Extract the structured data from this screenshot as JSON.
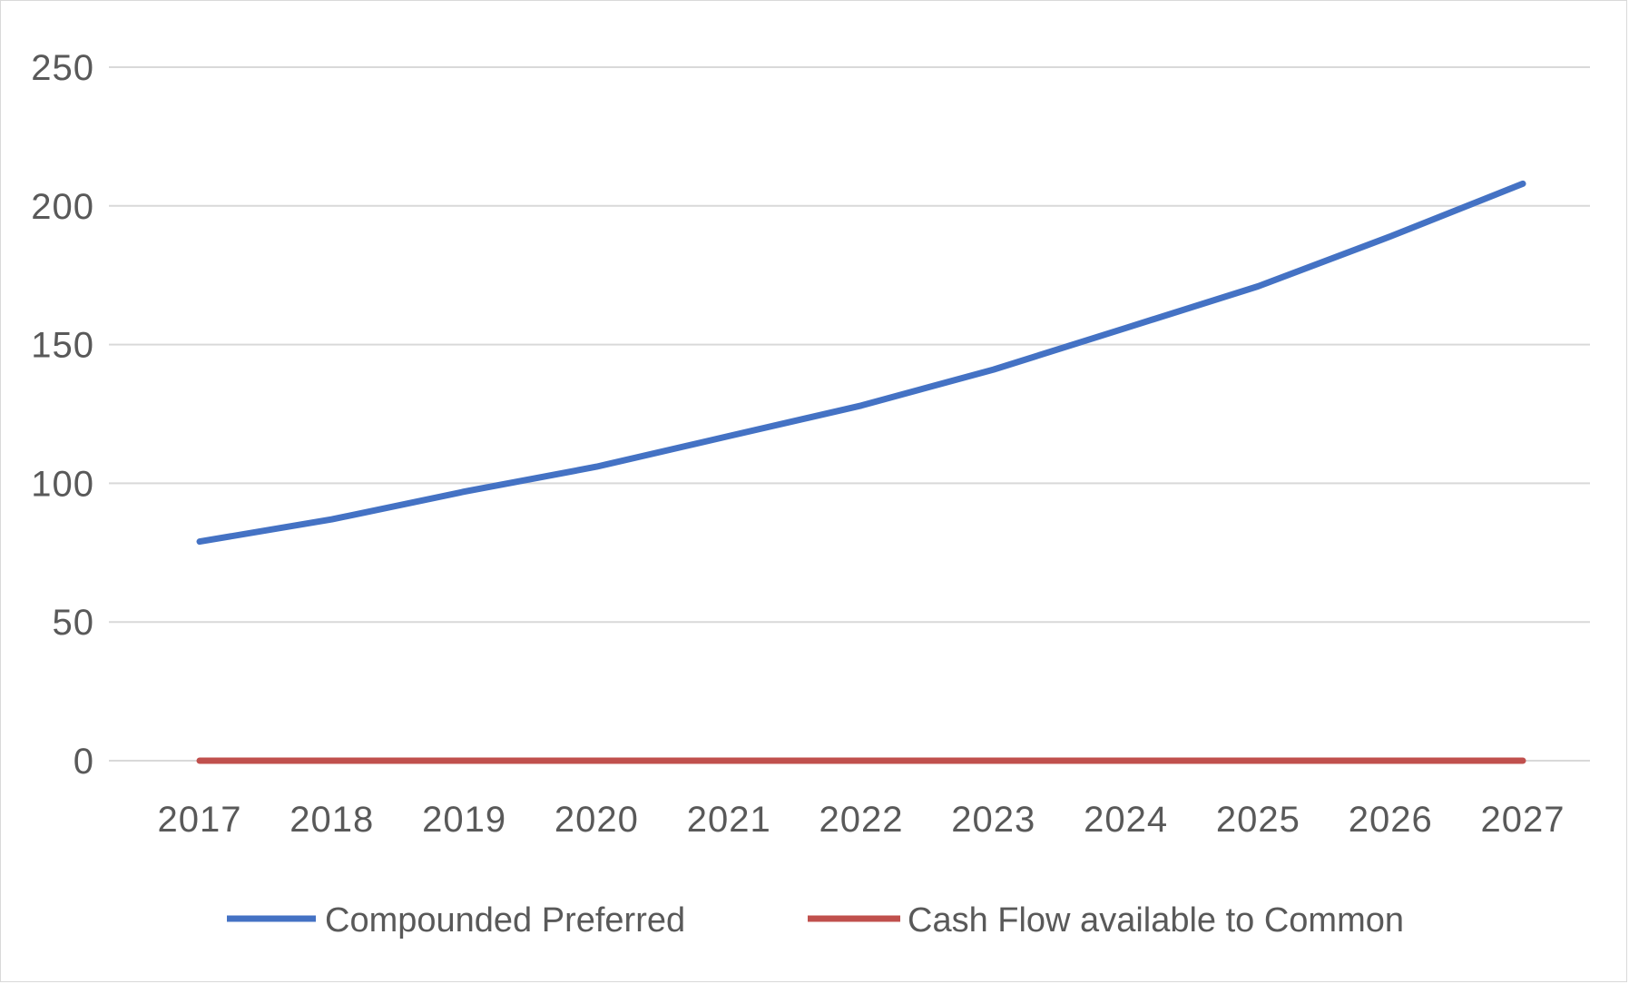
{
  "chart_data": {
    "type": "line",
    "title": "",
    "xlabel": "",
    "ylabel": "",
    "x": [
      "2017",
      "2018",
      "2019",
      "2020",
      "2021",
      "2022",
      "2023",
      "2024",
      "2025",
      "2026",
      "2027"
    ],
    "ylim": [
      0,
      250
    ],
    "yticks": [
      0,
      50,
      100,
      150,
      200,
      250
    ],
    "grid": true,
    "legend": "bottom",
    "series": [
      {
        "name": "Compounded Preferred",
        "color": "#4472c4",
        "values": [
          79,
          87,
          97,
          106,
          117,
          128,
          141,
          156,
          171,
          189,
          208
        ]
      },
      {
        "name": "Cash Flow available to Common",
        "color": "#c0504d",
        "values": [
          0,
          0,
          0,
          0,
          0,
          0,
          0,
          0,
          0,
          0,
          0
        ]
      }
    ]
  }
}
